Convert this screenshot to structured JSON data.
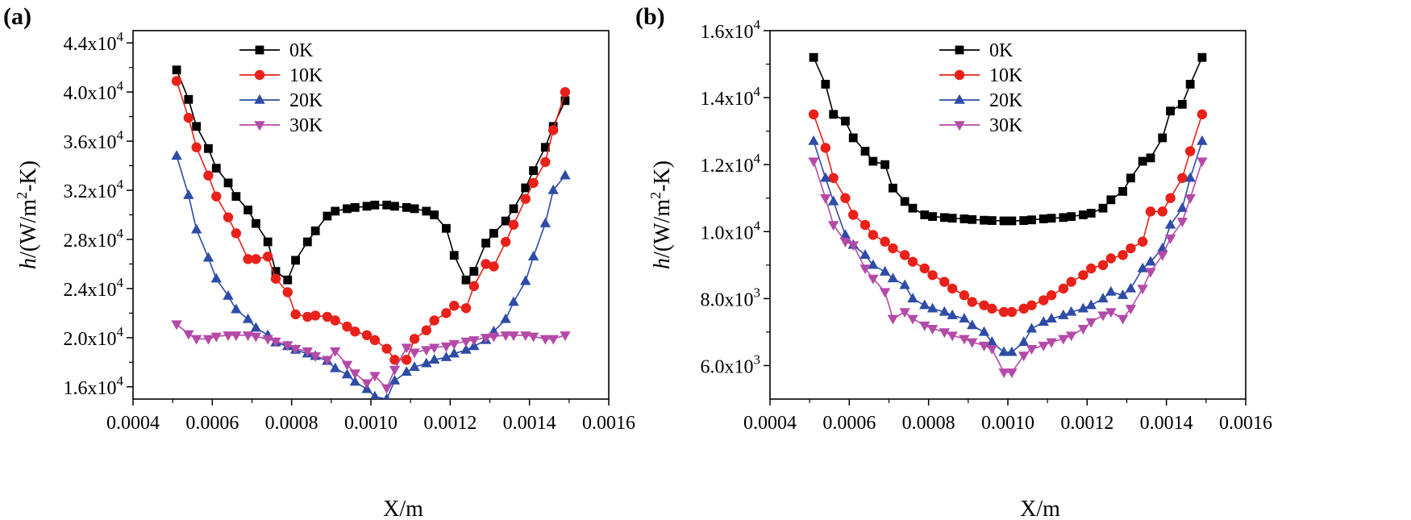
{
  "chart_data": [
    {
      "panel": "(a)",
      "type": "line",
      "xlabel": "X/m",
      "ylabel_html": [
        "h",
        "/(W/m",
        "2",
        "-K)"
      ],
      "xlim": [
        0.0004,
        0.0016
      ],
      "ylim": [
        15000,
        45000
      ],
      "xticks": [
        0.0004,
        0.0006,
        0.0008,
        0.001,
        0.0012,
        0.0014,
        0.0016
      ],
      "xtick_labels": [
        "0.0004",
        "0.0006",
        "0.0008",
        "0.0010",
        "0.0012",
        "0.0014",
        "0.0016"
      ],
      "yticks": [
        16000,
        20000,
        24000,
        28000,
        32000,
        36000,
        40000,
        44000
      ],
      "ytick_mant": [
        "1.6x10",
        "2.0x10",
        "2.4x10",
        "2.8x10",
        "3.2x10",
        "3.6x10",
        "4.0x10",
        "4.4x10"
      ],
      "ytick_exp": [
        "4",
        "4",
        "4",
        "4",
        "4",
        "4",
        "4",
        "4"
      ],
      "legend": [
        "0K",
        "10K",
        "20K",
        "30K"
      ],
      "series": [
        {
          "name": "0K",
          "color": "#000000",
          "marker": "square",
          "x": [
            0.00051,
            0.00054,
            0.00056,
            0.00059,
            0.00061,
            0.00064,
            0.00066,
            0.00069,
            0.00071,
            0.00074,
            0.00076,
            0.00079,
            0.00081,
            0.00084,
            0.00086,
            0.00089,
            0.00091,
            0.00094,
            0.00096,
            0.00099,
            0.00101,
            0.00104,
            0.00106,
            0.00109,
            0.00111,
            0.00114,
            0.00116,
            0.00119,
            0.00121,
            0.00124,
            0.00126,
            0.00129,
            0.00131,
            0.00134,
            0.00136,
            0.00139,
            0.00141,
            0.00144,
            0.00146,
            0.00149
          ],
          "y": [
            41800,
            39400,
            37200,
            35400,
            33800,
            32600,
            31500,
            30400,
            29300,
            27800,
            25400,
            24700,
            26300,
            27800,
            28700,
            29900,
            30300,
            30500,
            30600,
            30700,
            30800,
            30800,
            30700,
            30600,
            30500,
            30300,
            30000,
            28900,
            26700,
            24700,
            25400,
            27700,
            28500,
            29500,
            30500,
            32200,
            33600,
            35500,
            37200,
            39300
          ]
        },
        {
          "name": "10K",
          "color": "#e8211a",
          "marker": "circle",
          "x": [
            0.00051,
            0.00054,
            0.00056,
            0.00059,
            0.00061,
            0.00064,
            0.00066,
            0.00069,
            0.00071,
            0.00074,
            0.00076,
            0.00079,
            0.00081,
            0.00084,
            0.00086,
            0.00089,
            0.00091,
            0.00094,
            0.00096,
            0.00099,
            0.00101,
            0.00104,
            0.00106,
            0.00109,
            0.00111,
            0.00114,
            0.00116,
            0.00119,
            0.00121,
            0.00124,
            0.00126,
            0.00129,
            0.00131,
            0.00134,
            0.00136,
            0.00139,
            0.00141,
            0.00144,
            0.00146,
            0.00149
          ],
          "y": [
            40900,
            37900,
            35500,
            33200,
            31500,
            29800,
            28500,
            26400,
            26400,
            26600,
            24800,
            23700,
            21900,
            21700,
            21800,
            21700,
            21400,
            20900,
            20500,
            20200,
            19800,
            19100,
            18200,
            18200,
            19900,
            20600,
            21400,
            22000,
            22600,
            22400,
            24200,
            26000,
            25800,
            27800,
            29200,
            31300,
            32600,
            34300,
            36900,
            40000
          ]
        },
        {
          "name": "20K",
          "color": "#2e4ca6",
          "marker": "triangle-up",
          "x": [
            0.00051,
            0.00054,
            0.00056,
            0.00059,
            0.00061,
            0.00064,
            0.00066,
            0.00069,
            0.00071,
            0.00074,
            0.00076,
            0.00079,
            0.00081,
            0.00084,
            0.00086,
            0.00089,
            0.00091,
            0.00094,
            0.00096,
            0.00099,
            0.00101,
            0.00104,
            0.00106,
            0.00109,
            0.00111,
            0.00114,
            0.00116,
            0.00119,
            0.00121,
            0.00124,
            0.00126,
            0.00129,
            0.00131,
            0.00134,
            0.00136,
            0.00139,
            0.00141,
            0.00144,
            0.00146,
            0.00149
          ],
          "y": [
            34800,
            31600,
            28800,
            26500,
            24800,
            23400,
            22300,
            21500,
            20800,
            20200,
            19600,
            19300,
            19000,
            18700,
            18500,
            18100,
            17500,
            17000,
            16400,
            15800,
            15200,
            15000,
            16500,
            17200,
            17600,
            17900,
            18200,
            18400,
            18700,
            19000,
            19300,
            19800,
            20500,
            21500,
            22900,
            24600,
            26600,
            29300,
            32000,
            33200
          ]
        },
        {
          "name": "30K",
          "color": "#b44aa8",
          "marker": "triangle-down",
          "x": [
            0.00051,
            0.00054,
            0.00056,
            0.00059,
            0.00061,
            0.00064,
            0.00066,
            0.00069,
            0.00071,
            0.00074,
            0.00076,
            0.00079,
            0.00081,
            0.00084,
            0.00086,
            0.00089,
            0.00091,
            0.00094,
            0.00096,
            0.00099,
            0.00101,
            0.00104,
            0.00106,
            0.00109,
            0.00111,
            0.00114,
            0.00116,
            0.00119,
            0.00121,
            0.00124,
            0.00126,
            0.00129,
            0.00131,
            0.00134,
            0.00136,
            0.00139,
            0.00141,
            0.00144,
            0.00146,
            0.00149
          ],
          "y": [
            21100,
            20300,
            19900,
            19900,
            20100,
            20200,
            20200,
            20200,
            20100,
            19900,
            19700,
            19400,
            19100,
            18900,
            18500,
            18200,
            18900,
            17800,
            17100,
            16300,
            16900,
            15900,
            17400,
            19200,
            18800,
            19000,
            19200,
            19300,
            19500,
            19700,
            19800,
            20000,
            20100,
            20200,
            20200,
            20200,
            20100,
            19900,
            19900,
            20200
          ]
        }
      ]
    },
    {
      "panel": "(b)",
      "type": "line",
      "xlabel": "X/m",
      "ylabel_html": [
        "h",
        "/(W/m",
        "2",
        "-K)"
      ],
      "xlim": [
        0.0004,
        0.0016
      ],
      "ylim": [
        5000,
        16000
      ],
      "xticks": [
        0.0004,
        0.0006,
        0.0008,
        0.001,
        0.0012,
        0.0014,
        0.0016
      ],
      "xtick_labels": [
        "0.0004",
        "0.0006",
        "0.0008",
        "0.0010",
        "0.0012",
        "0.0014",
        "0.0016"
      ],
      "yticks": [
        6000,
        8000,
        10000,
        12000,
        14000,
        16000
      ],
      "ytick_mant": [
        "6.0x10",
        "8.0x10",
        "1.0x10",
        "1.2x10",
        "1.4x10",
        "1.6x10"
      ],
      "ytick_exp": [
        "3",
        "3",
        "4",
        "4",
        "4",
        "4"
      ],
      "legend": [
        "0K",
        "10K",
        "20K",
        "30K"
      ],
      "series": [
        {
          "name": "0K",
          "color": "#000000",
          "marker": "square",
          "x": [
            0.00051,
            0.00054,
            0.00056,
            0.00059,
            0.00061,
            0.00064,
            0.00066,
            0.00069,
            0.00071,
            0.00074,
            0.00076,
            0.00079,
            0.00081,
            0.00084,
            0.00086,
            0.00089,
            0.00091,
            0.00094,
            0.00096,
            0.00099,
            0.00101,
            0.00104,
            0.00106,
            0.00109,
            0.00111,
            0.00114,
            0.00116,
            0.00119,
            0.00121,
            0.00124,
            0.00126,
            0.00129,
            0.00131,
            0.00134,
            0.00136,
            0.00139,
            0.00141,
            0.00144,
            0.00146,
            0.00149
          ],
          "y": [
            15200,
            14400,
            13500,
            13300,
            12800,
            12400,
            12100,
            12000,
            11300,
            10900,
            10700,
            10500,
            10450,
            10420,
            10400,
            10380,
            10360,
            10340,
            10330,
            10320,
            10320,
            10330,
            10350,
            10380,
            10400,
            10420,
            10450,
            10500,
            10550,
            10700,
            10950,
            11200,
            11600,
            12100,
            12200,
            12800,
            13600,
            13800,
            14400,
            15200
          ]
        },
        {
          "name": "10K",
          "color": "#e8211a",
          "marker": "circle",
          "x": [
            0.00051,
            0.00054,
            0.00056,
            0.00059,
            0.00061,
            0.00064,
            0.00066,
            0.00069,
            0.00071,
            0.00074,
            0.00076,
            0.00079,
            0.00081,
            0.00084,
            0.00086,
            0.00089,
            0.00091,
            0.00094,
            0.00096,
            0.00099,
            0.00101,
            0.00104,
            0.00106,
            0.00109,
            0.00111,
            0.00114,
            0.00116,
            0.00119,
            0.00121,
            0.00124,
            0.00126,
            0.00129,
            0.00131,
            0.00134,
            0.00136,
            0.00139,
            0.00141,
            0.00144,
            0.00146,
            0.00149
          ],
          "y": [
            13500,
            12500,
            11600,
            11000,
            10500,
            10200,
            9900,
            9700,
            9500,
            9300,
            9100,
            8900,
            8700,
            8500,
            8300,
            8100,
            7900,
            7800,
            7700,
            7600,
            7600,
            7700,
            7800,
            7950,
            8100,
            8300,
            8500,
            8700,
            8900,
            9000,
            9200,
            9300,
            9500,
            9700,
            10600,
            10600,
            11000,
            11600,
            12400,
            13500
          ]
        },
        {
          "name": "20K",
          "color": "#2e4ca6",
          "marker": "triangle-up",
          "x": [
            0.00051,
            0.00054,
            0.00056,
            0.00059,
            0.00061,
            0.00064,
            0.00066,
            0.00069,
            0.00071,
            0.00074,
            0.00076,
            0.00079,
            0.00081,
            0.00084,
            0.00086,
            0.00089,
            0.00091,
            0.00094,
            0.00096,
            0.00099,
            0.00101,
            0.00104,
            0.00106,
            0.00109,
            0.00111,
            0.00114,
            0.00116,
            0.00119,
            0.00121,
            0.00124,
            0.00126,
            0.00129,
            0.00131,
            0.00134,
            0.00136,
            0.00139,
            0.00141,
            0.00144,
            0.00146,
            0.00149
          ],
          "y": [
            12700,
            11600,
            10900,
            9900,
            9600,
            9300,
            9000,
            8800,
            8600,
            8400,
            8000,
            7800,
            7700,
            7600,
            7500,
            7400,
            7200,
            7000,
            6700,
            6400,
            6400,
            6700,
            7100,
            7300,
            7400,
            7500,
            7600,
            7700,
            7800,
            8000,
            8200,
            8100,
            8300,
            8900,
            9100,
            9500,
            10200,
            10700,
            11600,
            12700
          ]
        },
        {
          "name": "30K",
          "color": "#b44aa8",
          "marker": "triangle-down",
          "x": [
            0.00051,
            0.00054,
            0.00056,
            0.00059,
            0.00061,
            0.00064,
            0.00066,
            0.00069,
            0.00071,
            0.00074,
            0.00076,
            0.00079,
            0.00081,
            0.00084,
            0.00086,
            0.00089,
            0.00091,
            0.00094,
            0.00096,
            0.00099,
            0.00101,
            0.00104,
            0.00106,
            0.00109,
            0.00111,
            0.00114,
            0.00116,
            0.00119,
            0.00121,
            0.00124,
            0.00126,
            0.00129,
            0.00131,
            0.00134,
            0.00136,
            0.00139,
            0.00141,
            0.00144,
            0.00146,
            0.00149
          ],
          "y": [
            12100,
            11000,
            10200,
            9700,
            9600,
            8900,
            8600,
            8200,
            7400,
            7600,
            7400,
            7200,
            7100,
            7000,
            6900,
            6800,
            6700,
            6600,
            6500,
            5800,
            5800,
            6300,
            6500,
            6600,
            6700,
            6800,
            6900,
            7100,
            7300,
            7500,
            7600,
            7400,
            7700,
            8300,
            8800,
            9300,
            9800,
            10300,
            11000,
            12100
          ]
        }
      ]
    }
  ]
}
